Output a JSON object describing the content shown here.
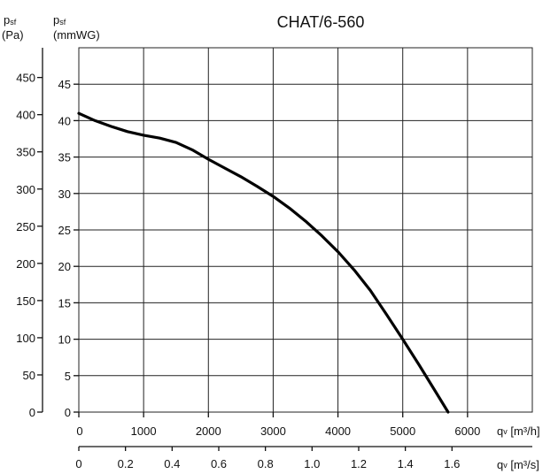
{
  "chart_data": {
    "type": "line",
    "title": "CHAT/6-560",
    "axes": {
      "y_left_pa": {
        "label_main": "p",
        "label_sub": "sf",
        "label_unit": "(Pa)",
        "ylim": [
          0,
          490
        ],
        "ticks": [
          0,
          50,
          100,
          150,
          200,
          250,
          300,
          350,
          400,
          450
        ]
      },
      "y_right_mmwg": {
        "label_main": "p",
        "label_sub": "sf",
        "label_unit": "(mmWG)",
        "ylim": [
          0,
          50
        ],
        "ticks": [
          0,
          5,
          10,
          15,
          20,
          25,
          30,
          35,
          40,
          45
        ]
      },
      "x_m3h": {
        "label_main": "q",
        "label_sub": "v",
        "label_unit": " [m³/h]",
        "xlim": [
          0,
          7000
        ],
        "ticks": [
          0,
          1000,
          2000,
          3000,
          4000,
          5000,
          6000
        ]
      },
      "x_m3s": {
        "label_main": "q",
        "label_sub": "v",
        "label_unit": " [m³/s]",
        "ticks": [
          "0",
          "0.2",
          "0.4",
          "0.6",
          "0.8",
          "1.0",
          "1.2",
          "1.4",
          "1.6"
        ]
      }
    },
    "grid": true,
    "series": [
      {
        "x_unit": "m3/h",
        "y_unit": "mmWG",
        "points": [
          [
            0,
            41
          ],
          [
            250,
            40.0
          ],
          [
            500,
            39.2
          ],
          [
            750,
            38.5
          ],
          [
            1000,
            38.0
          ],
          [
            1250,
            37.6
          ],
          [
            1500,
            37.0
          ],
          [
            1750,
            36.0
          ],
          [
            2000,
            34.7
          ],
          [
            2250,
            33.5
          ],
          [
            2500,
            32.3
          ],
          [
            2750,
            31.0
          ],
          [
            3000,
            29.6
          ],
          [
            3250,
            28.0
          ],
          [
            3500,
            26.2
          ],
          [
            3750,
            24.2
          ],
          [
            4000,
            22.0
          ],
          [
            4250,
            19.5
          ],
          [
            4500,
            16.7
          ],
          [
            4750,
            13.4
          ],
          [
            5000,
            10.0
          ],
          [
            5250,
            6.5
          ],
          [
            5500,
            2.9
          ],
          [
            5700,
            0
          ]
        ]
      }
    ]
  }
}
